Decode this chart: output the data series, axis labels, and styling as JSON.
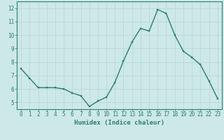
{
  "x": [
    0,
    1,
    2,
    3,
    4,
    5,
    6,
    7,
    8,
    9,
    10,
    11,
    12,
    13,
    14,
    15,
    16,
    17,
    18,
    19,
    20,
    21,
    22,
    23
  ],
  "y": [
    7.5,
    6.8,
    6.1,
    6.1,
    6.1,
    6.0,
    5.7,
    5.5,
    4.7,
    5.1,
    5.4,
    6.5,
    8.1,
    9.5,
    10.5,
    10.3,
    11.9,
    11.6,
    10.0,
    8.8,
    8.35,
    7.8,
    6.6,
    5.3
  ],
  "xlim": [
    -0.5,
    23.5
  ],
  "ylim": [
    4.5,
    12.5
  ],
  "yticks": [
    5,
    6,
    7,
    8,
    9,
    10,
    11,
    12
  ],
  "xticks": [
    0,
    1,
    2,
    3,
    4,
    5,
    6,
    7,
    8,
    9,
    10,
    11,
    12,
    13,
    14,
    15,
    16,
    17,
    18,
    19,
    20,
    21,
    22,
    23
  ],
  "xlabel": "Humidex (Indice chaleur)",
  "line_color": "#2e7d6e",
  "marker_color": "#2e7d6e",
  "bg_color": "#cce8e8",
  "grid_color": "#b8d4d4",
  "axis_color": "#2e7d6e",
  "tick_label_color": "#2e7d6e",
  "xlabel_color": "#2e7d6e",
  "xlabel_fontsize": 6.5,
  "tick_fontsize": 5.5,
  "linewidth": 1.0,
  "markersize": 2.0
}
